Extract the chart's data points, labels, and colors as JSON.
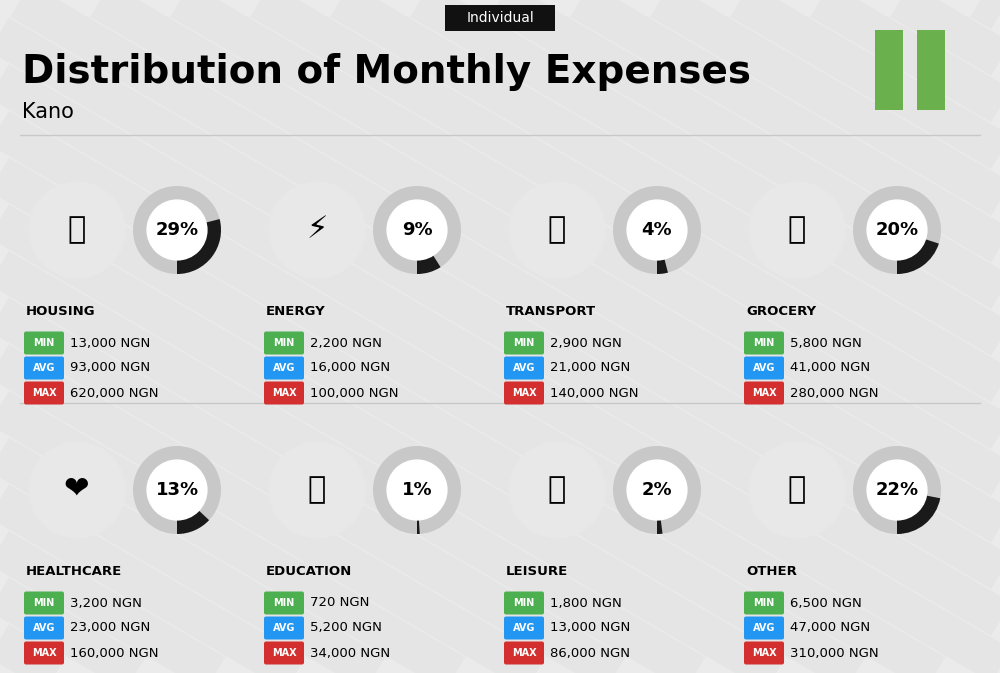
{
  "title": "Distribution of Monthly Expenses",
  "subtitle": "Individual",
  "city": "Kano",
  "background_color": "#ebebeb",
  "categories": [
    {
      "name": "HOUSING",
      "percent": 29,
      "min": "13,000 NGN",
      "avg": "93,000 NGN",
      "max": "620,000 NGN",
      "row": 0,
      "col": 0
    },
    {
      "name": "ENERGY",
      "percent": 9,
      "min": "2,200 NGN",
      "avg": "16,000 NGN",
      "max": "100,000 NGN",
      "row": 0,
      "col": 1
    },
    {
      "name": "TRANSPORT",
      "percent": 4,
      "min": "2,900 NGN",
      "avg": "21,000 NGN",
      "max": "140,000 NGN",
      "row": 0,
      "col": 2
    },
    {
      "name": "GROCERY",
      "percent": 20,
      "min": "5,800 NGN",
      "avg": "41,000 NGN",
      "max": "280,000 NGN",
      "row": 0,
      "col": 3
    },
    {
      "name": "HEALTHCARE",
      "percent": 13,
      "min": "3,200 NGN",
      "avg": "23,000 NGN",
      "max": "160,000 NGN",
      "row": 1,
      "col": 0
    },
    {
      "name": "EDUCATION",
      "percent": 1,
      "min": "720 NGN",
      "avg": "5,200 NGN",
      "max": "34,000 NGN",
      "row": 1,
      "col": 1
    },
    {
      "name": "LEISURE",
      "percent": 2,
      "min": "1,800 NGN",
      "avg": "13,000 NGN",
      "max": "86,000 NGN",
      "row": 1,
      "col": 2
    },
    {
      "name": "OTHER",
      "percent": 22,
      "min": "6,500 NGN",
      "avg": "47,000 NGN",
      "max": "310,000 NGN",
      "row": 1,
      "col": 3
    }
  ],
  "color_min": "#4caf50",
  "color_avg": "#2196f3",
  "color_max": "#d32f2f",
  "arc_fill_color": "#1a1a1a",
  "arc_bg_color": "#c8c8c8",
  "nigeria_flag_green": "#6ab04c",
  "subtitle_bg": "#111111",
  "subtitle_text": "#ffffff"
}
